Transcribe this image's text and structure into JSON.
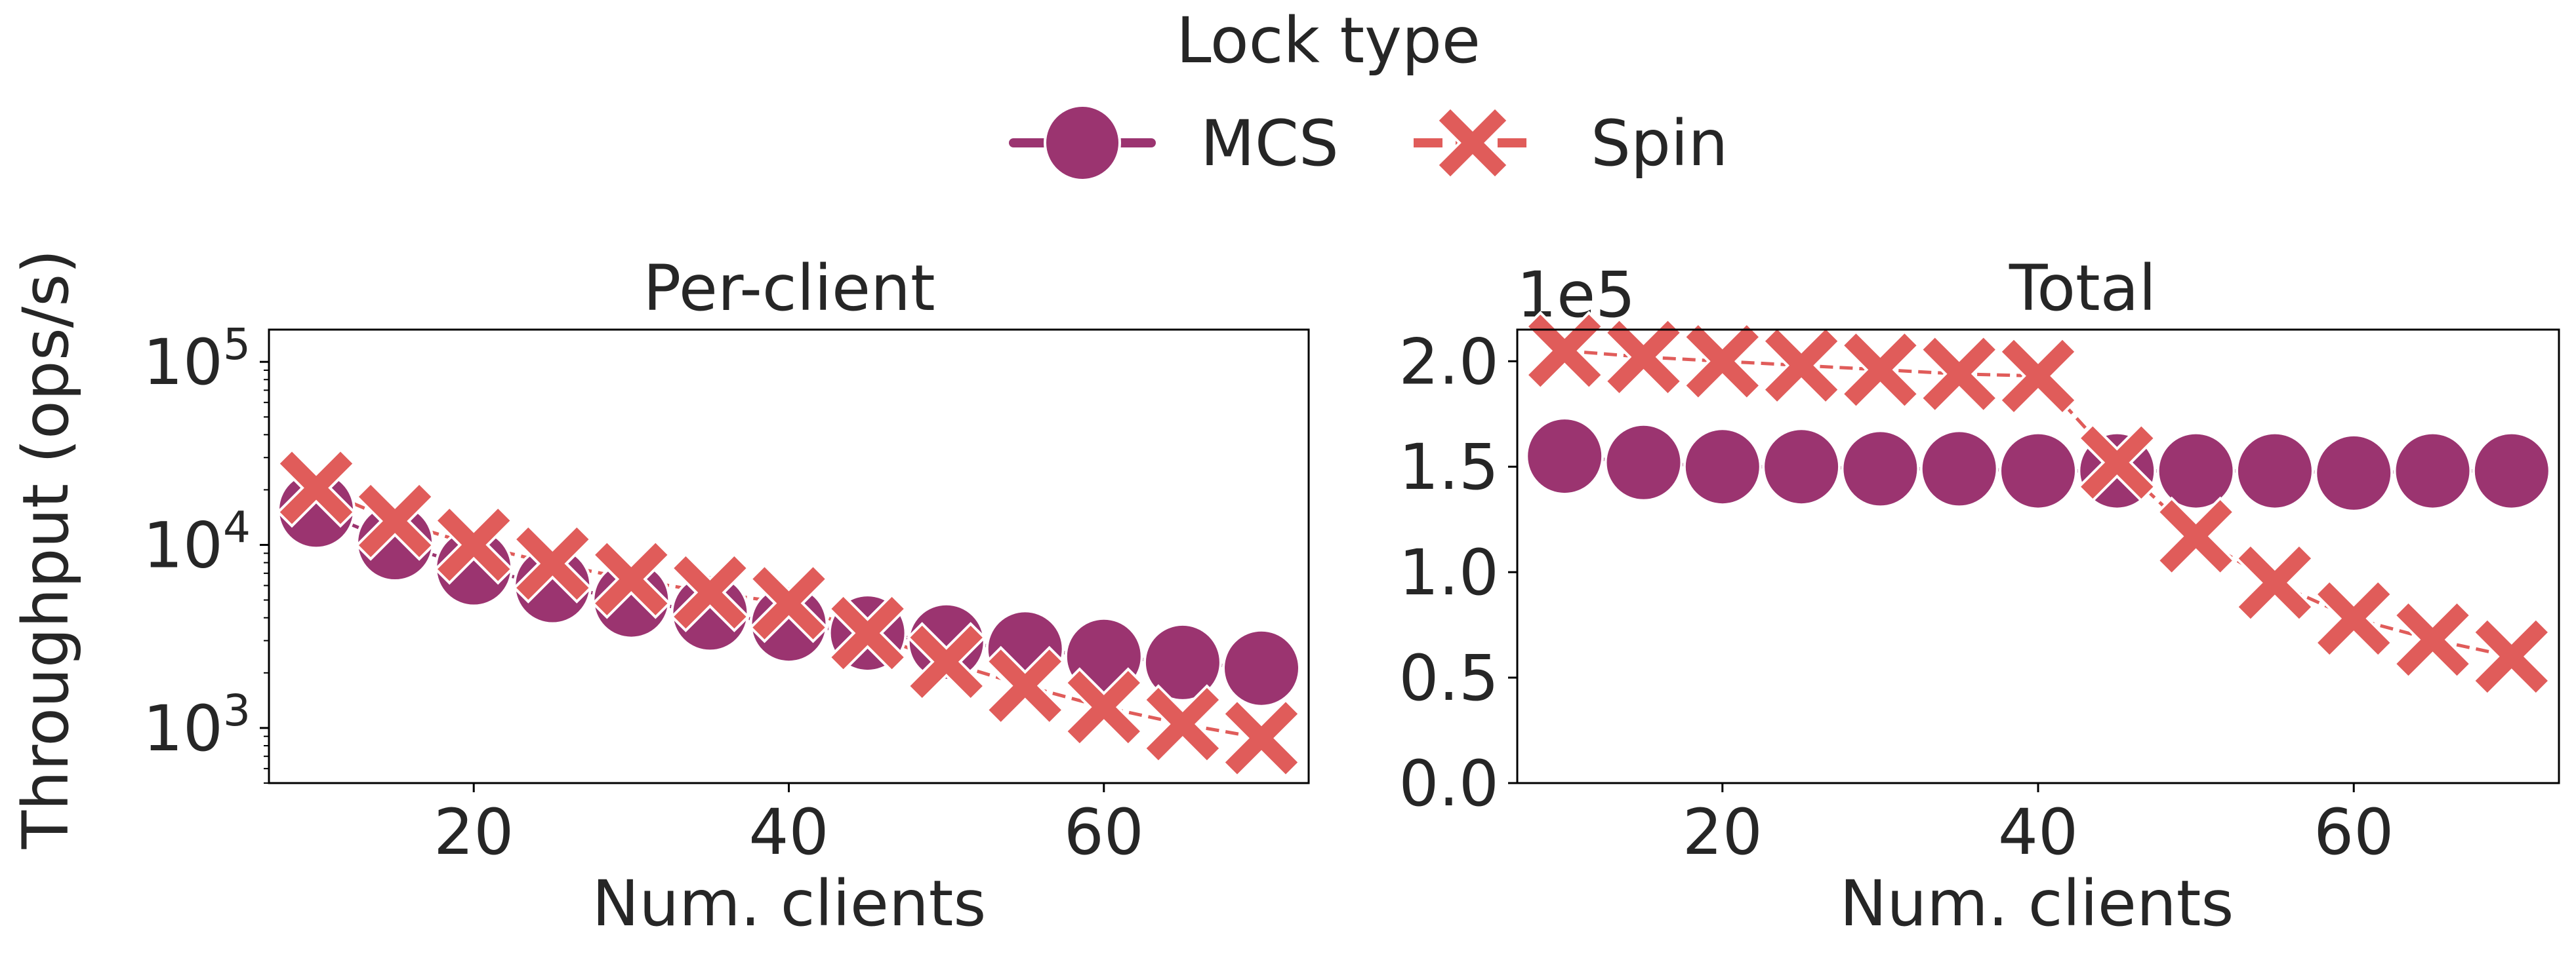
{
  "legend": {
    "title": "Lock type",
    "entries": [
      {
        "label": "MCS",
        "marker": "circle",
        "linestyle": "solid"
      },
      {
        "label": "Spin",
        "marker": "x",
        "linestyle": "dashed"
      }
    ],
    "placement": "top-center"
  },
  "shared_ylabel": "Throughput (ops/s)",
  "colors": {
    "MCS": "#9b3470",
    "Spin": "#e05c5a"
  },
  "chart_data": [
    {
      "type": "line",
      "title": "Per-client",
      "xlabel": "Num. clients",
      "ylabel": "Throughput (ops/s)",
      "yscale": "log",
      "xlim": [
        7,
        73
      ],
      "ylim": [
        500,
        150000
      ],
      "xticks": [
        20,
        40,
        60
      ],
      "yticks": [
        1000,
        10000,
        100000
      ],
      "ytick_labels": [
        {
          "base": "10",
          "exp": "3"
        },
        {
          "base": "10",
          "exp": "4"
        },
        {
          "base": "10",
          "exp": "5"
        }
      ],
      "grid": false,
      "x": [
        10,
        15,
        20,
        25,
        30,
        35,
        40,
        45,
        50,
        55,
        60,
        65,
        70
      ],
      "series": [
        {
          "name": "MCS",
          "values": [
            15500,
            10300,
            7500,
            6000,
            5000,
            4250,
            3700,
            3300,
            2950,
            2700,
            2460,
            2280,
            2120
          ]
        },
        {
          "name": "Spin",
          "values": [
            20500,
            13500,
            10000,
            7900,
            6500,
            5500,
            4800,
            3300,
            2300,
            1700,
            1300,
            1050,
            880
          ]
        }
      ]
    },
    {
      "type": "line",
      "title": "Total",
      "xlabel": "Num. clients",
      "ylabel": "Throughput (ops/s)",
      "offset_label": "1e5",
      "yscale": "linear",
      "xlim": [
        7,
        73
      ],
      "ylim": [
        0,
        2.15
      ],
      "xticks": [
        20,
        40,
        60
      ],
      "yticks": [
        0.0,
        0.5,
        1.0,
        1.5,
        2.0
      ],
      "ytick_labels": [
        "0.0",
        "0.5",
        "1.0",
        "1.5",
        "2.0"
      ],
      "grid": false,
      "x": [
        10,
        15,
        20,
        25,
        30,
        35,
        40,
        45,
        50,
        55,
        60,
        65,
        70
      ],
      "series": [
        {
          "name": "MCS",
          "values": [
            1.55,
            1.52,
            1.5,
            1.5,
            1.49,
            1.49,
            1.48,
            1.48,
            1.48,
            1.48,
            1.47,
            1.48,
            1.48
          ]
        },
        {
          "name": "Spin",
          "values": [
            2.05,
            2.02,
            2.0,
            1.98,
            1.96,
            1.94,
            1.93,
            1.52,
            1.17,
            0.95,
            0.78,
            0.68,
            0.6
          ]
        }
      ]
    }
  ]
}
